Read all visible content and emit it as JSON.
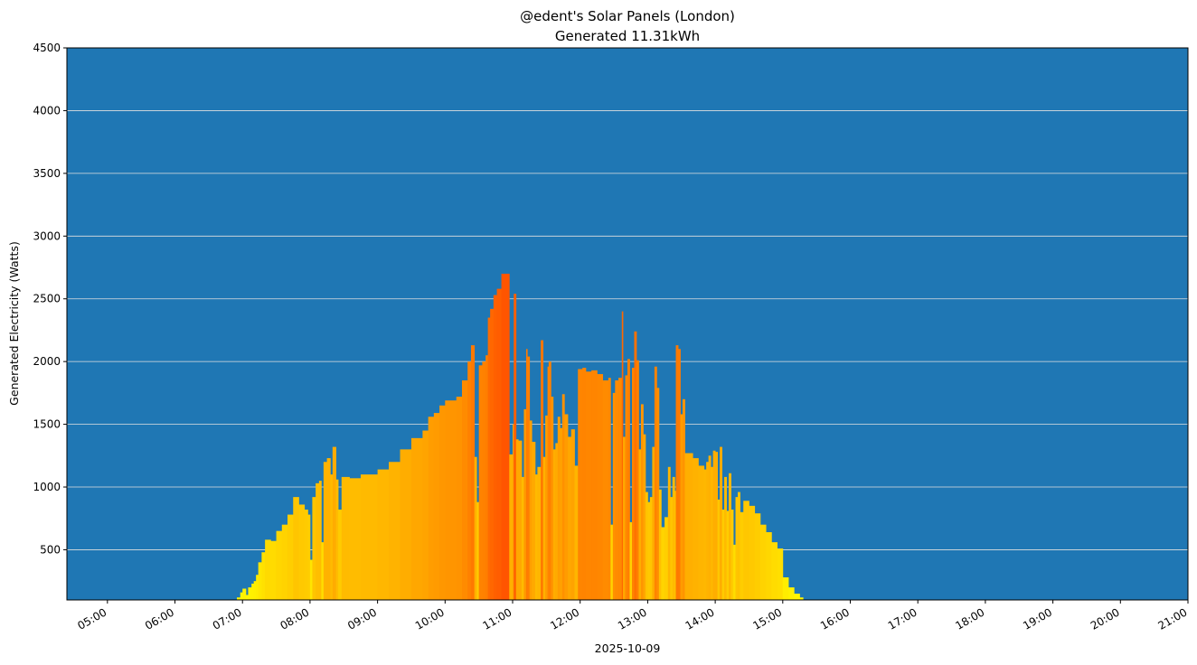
{
  "chart_data": {
    "type": "bar",
    "title": "@edent's Solar Panels (London)",
    "subtitle": "Generated 11.31kWh",
    "xlabel": "2025-10-09",
    "ylabel": "Generated Electricity (Watts)",
    "ylim": [
      100,
      4500
    ],
    "xlim": [
      "04:24",
      "21:00"
    ],
    "y_ticks": [
      500,
      1000,
      1500,
      2000,
      2500,
      3000,
      3500,
      4000,
      4500
    ],
    "x_ticks": [
      "05:00",
      "06:00",
      "07:00",
      "08:00",
      "09:00",
      "10:00",
      "11:00",
      "12:00",
      "13:00",
      "14:00",
      "15:00",
      "16:00",
      "17:00",
      "18:00",
      "19:00",
      "20:00",
      "21:00"
    ],
    "grid": "horizontal",
    "colors": {
      "background": "#1f77b4",
      "grid": "#e0e0e0",
      "bar_colormap": [
        "#ffff00",
        "#ff5500"
      ]
    },
    "points": [
      [
        "06:55",
        120
      ],
      [
        "06:58",
        160
      ],
      [
        "07:00",
        190
      ],
      [
        "07:03",
        140
      ],
      [
        "07:05",
        200
      ],
      [
        "07:08",
        230
      ],
      [
        "07:10",
        250
      ],
      [
        "07:12",
        300
      ],
      [
        "07:14",
        400
      ],
      [
        "07:17",
        480
      ],
      [
        "07:20",
        580
      ],
      [
        "07:25",
        570
      ],
      [
        "07:30",
        650
      ],
      [
        "07:35",
        700
      ],
      [
        "07:40",
        780
      ],
      [
        "07:45",
        920
      ],
      [
        "07:50",
        860
      ],
      [
        "07:55",
        820
      ],
      [
        "07:58",
        780
      ],
      [
        "08:00",
        420
      ],
      [
        "08:02",
        920
      ],
      [
        "08:05",
        1030
      ],
      [
        "08:08",
        1050
      ],
      [
        "08:10",
        560
      ],
      [
        "08:12",
        1200
      ],
      [
        "08:15",
        1230
      ],
      [
        "08:18",
        1100
      ],
      [
        "08:20",
        1320
      ],
      [
        "08:23",
        1060
      ],
      [
        "08:25",
        820
      ],
      [
        "08:28",
        1080
      ],
      [
        "08:35",
        1070
      ],
      [
        "08:45",
        1100
      ],
      [
        "09:00",
        1140
      ],
      [
        "09:10",
        1200
      ],
      [
        "09:20",
        1300
      ],
      [
        "09:30",
        1390
      ],
      [
        "09:40",
        1450
      ],
      [
        "09:45",
        1560
      ],
      [
        "09:50",
        1590
      ],
      [
        "09:55",
        1650
      ],
      [
        "10:00",
        1690
      ],
      [
        "10:10",
        1720
      ],
      [
        "10:15",
        1850
      ],
      [
        "10:20",
        2000
      ],
      [
        "10:23",
        2130
      ],
      [
        "10:26",
        1240
      ],
      [
        "10:28",
        880
      ],
      [
        "10:30",
        1970
      ],
      [
        "10:33",
        2000
      ],
      [
        "10:36",
        2050
      ],
      [
        "10:38",
        2350
      ],
      [
        "10:40",
        2420
      ],
      [
        "10:43",
        2530
      ],
      [
        "10:46",
        2580
      ],
      [
        "10:50",
        2700
      ],
      [
        "10:55",
        2700
      ],
      [
        "10:57",
        1260
      ],
      [
        "11:00",
        1500
      ],
      [
        "11:01",
        2540
      ],
      [
        "11:03",
        1380
      ],
      [
        "11:05",
        1370
      ],
      [
        "11:08",
        1080
      ],
      [
        "11:10",
        1620
      ],
      [
        "11:12",
        2100
      ],
      [
        "11:13",
        2040
      ],
      [
        "11:15",
        1530
      ],
      [
        "11:17",
        1360
      ],
      [
        "11:20",
        1100
      ],
      [
        "11:22",
        1160
      ],
      [
        "11:25",
        2170
      ],
      [
        "11:27",
        1240
      ],
      [
        "11:29",
        1570
      ],
      [
        "11:31",
        1960
      ],
      [
        "11:32",
        2000
      ],
      [
        "11:34",
        1720
      ],
      [
        "11:36",
        1300
      ],
      [
        "11:38",
        1350
      ],
      [
        "11:40",
        1560
      ],
      [
        "11:42",
        1470
      ],
      [
        "11:44",
        1740
      ],
      [
        "11:46",
        1580
      ],
      [
        "11:49",
        1400
      ],
      [
        "11:52",
        1460
      ],
      [
        "11:55",
        1170
      ],
      [
        "11:58",
        1940
      ],
      [
        "12:02",
        1950
      ],
      [
        "12:05",
        1920
      ],
      [
        "12:10",
        1930
      ],
      [
        "12:15",
        1900
      ],
      [
        "12:20",
        1850
      ],
      [
        "12:25",
        1870
      ],
      [
        "12:27",
        700
      ],
      [
        "12:29",
        1750
      ],
      [
        "12:31",
        1850
      ],
      [
        "12:34",
        1870
      ],
      [
        "12:37",
        2400
      ],
      [
        "12:38",
        1400
      ],
      [
        "12:40",
        1890
      ],
      [
        "12:42",
        2020
      ],
      [
        "12:44",
        720
      ],
      [
        "12:46",
        1950
      ],
      [
        "12:48",
        2240
      ],
      [
        "12:50",
        2010
      ],
      [
        "12:52",
        1300
      ],
      [
        "12:54",
        1660
      ],
      [
        "12:56",
        1420
      ],
      [
        "12:58",
        960
      ],
      [
        "13:00",
        880
      ],
      [
        "13:02",
        920
      ],
      [
        "13:04",
        1320
      ],
      [
        "13:06",
        1960
      ],
      [
        "13:08",
        1790
      ],
      [
        "13:10",
        980
      ],
      [
        "13:12",
        680
      ],
      [
        "13:15",
        760
      ],
      [
        "13:18",
        1160
      ],
      [
        "13:20",
        920
      ],
      [
        "13:22",
        1080
      ],
      [
        "13:24",
        970
      ],
      [
        "13:25",
        2130
      ],
      [
        "13:27",
        2100
      ],
      [
        "13:29",
        1580
      ],
      [
        "13:31",
        1700
      ],
      [
        "13:33",
        1270
      ],
      [
        "13:40",
        1230
      ],
      [
        "13:45",
        1170
      ],
      [
        "13:50",
        1140
      ],
      [
        "13:52",
        1200
      ],
      [
        "13:54",
        1250
      ],
      [
        "13:56",
        1160
      ],
      [
        "13:58",
        1290
      ],
      [
        "14:00",
        1280
      ],
      [
        "14:02",
        900
      ],
      [
        "14:04",
        1320
      ],
      [
        "14:06",
        820
      ],
      [
        "14:08",
        1080
      ],
      [
        "14:10",
        810
      ],
      [
        "14:12",
        1110
      ],
      [
        "14:14",
        820
      ],
      [
        "14:16",
        540
      ],
      [
        "14:18",
        920
      ],
      [
        "14:20",
        960
      ],
      [
        "14:22",
        800
      ],
      [
        "14:25",
        890
      ],
      [
        "14:30",
        850
      ],
      [
        "14:35",
        790
      ],
      [
        "14:40",
        700
      ],
      [
        "14:45",
        640
      ],
      [
        "14:50",
        560
      ],
      [
        "14:55",
        510
      ],
      [
        "15:00",
        280
      ],
      [
        "15:05",
        200
      ],
      [
        "15:10",
        150
      ],
      [
        "15:15",
        120
      ],
      [
        "15:18",
        100
      ]
    ]
  }
}
